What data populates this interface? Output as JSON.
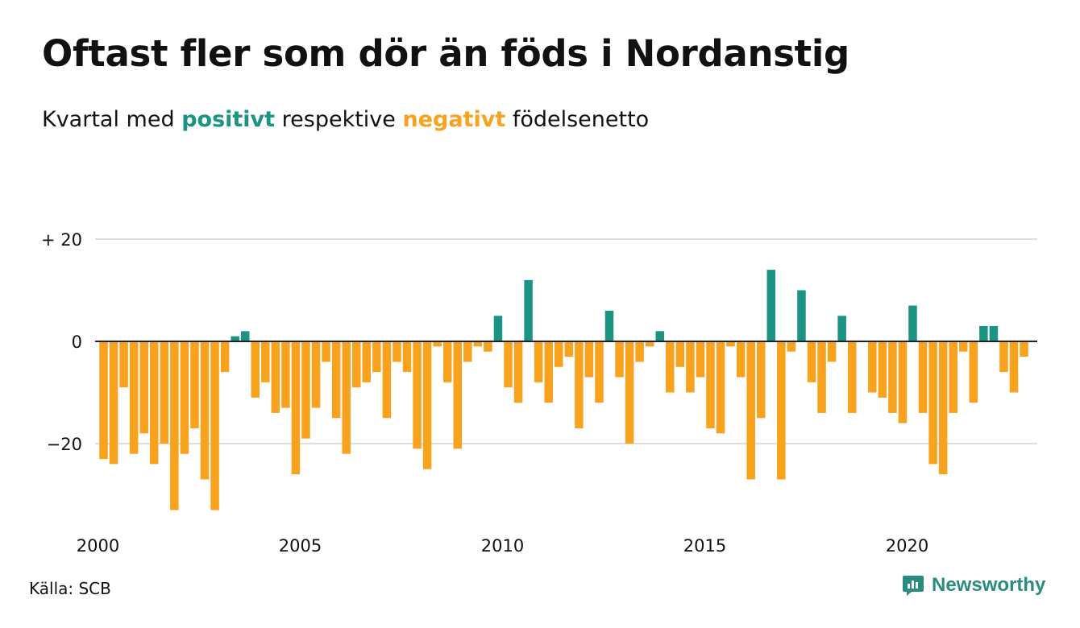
{
  "title": "Oftast fler som dör än föds i Nordanstig",
  "subtitle": {
    "before": "Kvartal med ",
    "positive": "positivt",
    "middle": " respektive ",
    "negative": "negativt",
    "after": " födelsenetto"
  },
  "source": "Källa: SCB",
  "brand": {
    "name": "Newsworthy",
    "icon": "newsworthy-logo-icon"
  },
  "colors": {
    "positive": "#1b9484",
    "negative": "#f8a21e",
    "grid": "#dddddd",
    "zero_line": "#222222",
    "text": "#111111"
  },
  "chart_data": {
    "type": "bar",
    "title": "Oftast fler som dör än föds i Nordanstig",
    "ylim": [
      -35,
      22
    ],
    "y_ticks": [
      {
        "value": 20,
        "label": "+ 20"
      },
      {
        "value": 0,
        "label": "0"
      },
      {
        "value": -20,
        "label": "−20"
      }
    ],
    "x_ticks": [
      "2000",
      "2005",
      "2010",
      "2015",
      "2020"
    ],
    "x_start": "2000 Q1",
    "frequency": "quarterly",
    "values": [
      -23,
      -24,
      -9,
      -22,
      -18,
      -24,
      -20,
      -33,
      -22,
      -17,
      -27,
      -33,
      -6,
      1,
      2,
      -11,
      -8,
      -14,
      -13,
      -26,
      -19,
      -13,
      -4,
      -15,
      -22,
      -9,
      -8,
      -6,
      -15,
      -4,
      -6,
      -21,
      -25,
      -1,
      -8,
      -21,
      -4,
      -1,
      -2,
      5,
      -9,
      -12,
      12,
      -8,
      -12,
      -5,
      -3,
      -17,
      -7,
      -12,
      6,
      -7,
      -20,
      -4,
      -1,
      2,
      -10,
      -5,
      -10,
      -7,
      -17,
      -18,
      -1,
      -7,
      -27,
      -15,
      14,
      -27,
      -2,
      10,
      -8,
      -14,
      -4,
      5,
      -14,
      0,
      -10,
      -11,
      -14,
      -16,
      7,
      -14,
      -24,
      -26,
      -14,
      -2,
      -12,
      3,
      3,
      -6,
      -10,
      -3
    ],
    "grid": true,
    "legend": "none"
  }
}
